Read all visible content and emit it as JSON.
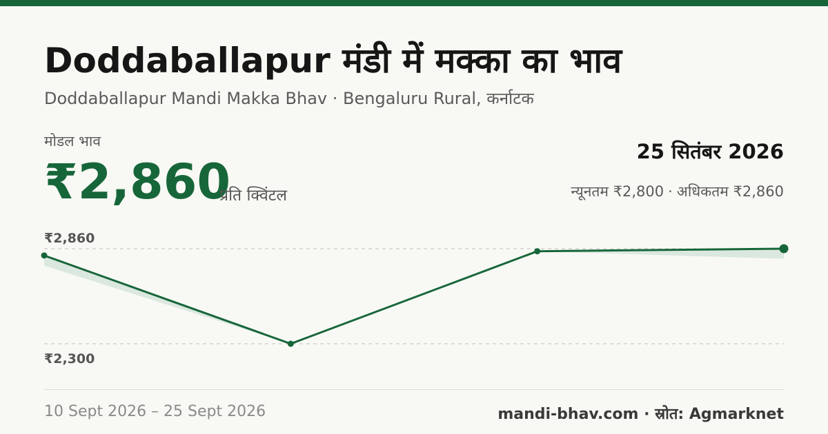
{
  "header": {
    "title": "Doddaballapur मंडी में मक्का का भाव",
    "subtitle": "Doddaballapur Mandi Makka Bhav · Bengaluru Rural, कर्नाटक"
  },
  "price": {
    "label": "मोडल भाव",
    "value": "₹2,860",
    "unit": "प्रति क्विंटल"
  },
  "summary": {
    "date": "25 सितंबर 2026",
    "min_text": "न्यूनतम ₹2,800",
    "separator": "·",
    "max_text": "अधिकतम ₹2,860"
  },
  "footer": {
    "date_range": "10 Sept 2026 – 25 Sept 2026",
    "source": "mandi-bhav.com · स्रोत: Agmarknet"
  },
  "colors": {
    "accent": "#17663a",
    "band": "#dbe8df",
    "background": "#f8f9f4"
  },
  "chart_data": {
    "type": "line",
    "x": [
      "2026-09-10",
      "2026-09-15",
      "2026-09-20",
      "2026-09-25"
    ],
    "series": [
      {
        "values": [
          2820,
          2300,
          2845,
          2860
        ]
      }
    ],
    "band_min": [
      2760,
      2300,
      2845,
      2800
    ],
    "ylim": [
      2300,
      2860
    ],
    "reference_lines": [
      {
        "value": 2860,
        "label": "₹2,860"
      },
      {
        "value": 2300,
        "label": "₹2,300"
      }
    ],
    "grid": false,
    "legend": "none"
  }
}
